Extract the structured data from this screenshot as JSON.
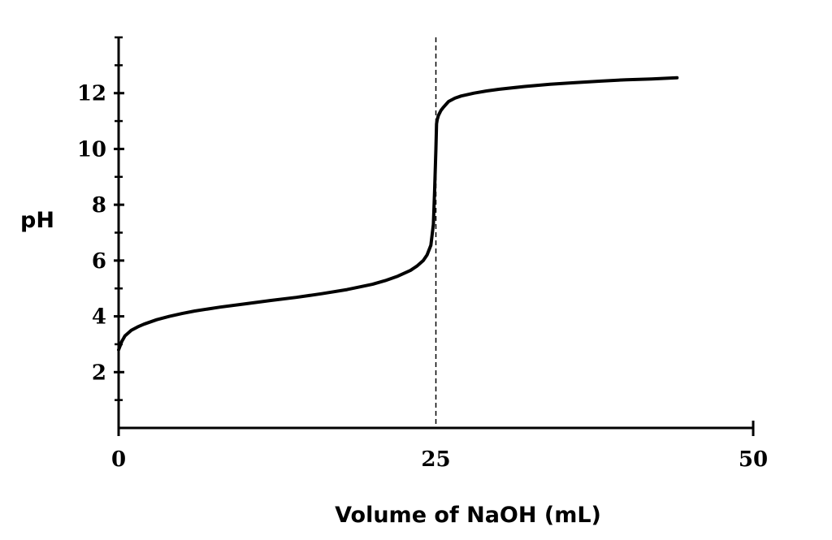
{
  "chart_data": {
    "type": "line",
    "title": "",
    "xlabel": "Volume of NaOH (mL)",
    "ylabel": "pH",
    "xlim": [
      0,
      50
    ],
    "ylim": [
      0,
      14
    ],
    "x_ticks": [
      0,
      25,
      50
    ],
    "x_tick_labels": [
      "0",
      "25",
      "50"
    ],
    "y_ticks": [
      2,
      4,
      6,
      8,
      10,
      12
    ],
    "y_tick_labels": [
      "2",
      "4",
      "6",
      "8",
      "10",
      "12"
    ],
    "y_minor_ticks": [
      1,
      3,
      5,
      7,
      9,
      11,
      13,
      14
    ],
    "grid": false,
    "legend": "none",
    "reference_line": {
      "x": 25,
      "style": "dashed"
    },
    "line_color": "#000000",
    "series": [
      {
        "x": [
          0,
          0.25,
          0.5,
          1,
          1.5,
          2,
          3,
          4,
          5,
          6,
          8,
          10,
          12,
          14,
          16,
          18,
          20,
          21,
          22,
          23,
          23.5,
          24,
          24.3,
          24.6,
          24.8,
          24.9,
          25,
          25.05,
          25.1,
          25.2,
          25.4,
          25.6,
          26,
          26.5,
          27,
          28,
          29,
          30,
          32,
          34,
          36,
          38,
          40,
          42,
          44
        ],
        "y": [
          2.8,
          3.1,
          3.3,
          3.5,
          3.62,
          3.72,
          3.88,
          4.0,
          4.1,
          4.19,
          4.33,
          4.45,
          4.57,
          4.68,
          4.81,
          4.96,
          5.15,
          5.28,
          5.44,
          5.65,
          5.8,
          6.0,
          6.2,
          6.55,
          7.3,
          8.5,
          10.0,
          10.9,
          11.05,
          11.2,
          11.38,
          11.5,
          11.7,
          11.82,
          11.9,
          12.0,
          12.08,
          12.14,
          12.24,
          12.32,
          12.38,
          12.43,
          12.48,
          12.51,
          12.55
        ]
      }
    ]
  }
}
